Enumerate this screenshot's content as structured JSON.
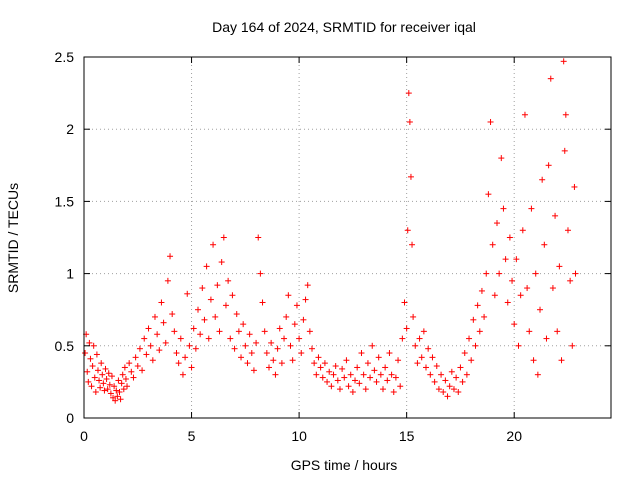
{
  "chart_data": {
    "type": "scatter",
    "title": "Day 164 of 2024, SRMTID for receiver iqal",
    "xlabel": "GPS time / hours",
    "ylabel": "SRMTID / TECUs",
    "xlim": [
      0,
      24.5
    ],
    "ylim": [
      0,
      2.5
    ],
    "xticks": [
      0,
      5,
      10,
      15,
      20
    ],
    "xtick_labels": [
      "0",
      "5",
      "10",
      "15",
      "20"
    ],
    "yticks": [
      0,
      0.5,
      1,
      1.5,
      2,
      2.5
    ],
    "ytick_labels": [
      "0",
      "0.5",
      "1",
      "1.5",
      "2",
      "2.5"
    ],
    "grid": true,
    "marker": "+",
    "color": "#ff0000",
    "series": [
      {
        "name": "SRMTID",
        "points": [
          [
            0.05,
            0.45
          ],
          [
            0.1,
            0.58
          ],
          [
            0.15,
            0.32
          ],
          [
            0.2,
            0.25
          ],
          [
            0.25,
            0.52
          ],
          [
            0.3,
            0.41
          ],
          [
            0.35,
            0.22
          ],
          [
            0.4,
            0.36
          ],
          [
            0.45,
            0.5
          ],
          [
            0.5,
            0.28
          ],
          [
            0.55,
            0.18
          ],
          [
            0.6,
            0.44
          ],
          [
            0.65,
            0.33
          ],
          [
            0.7,
            0.26
          ],
          [
            0.75,
            0.21
          ],
          [
            0.8,
            0.38
          ],
          [
            0.85,
            0.3
          ],
          [
            0.9,
            0.24
          ],
          [
            0.95,
            0.19
          ],
          [
            1.0,
            0.34
          ],
          [
            1.05,
            0.27
          ],
          [
            1.1,
            0.2
          ],
          [
            1.15,
            0.31
          ],
          [
            1.2,
            0.23
          ],
          [
            1.25,
            0.17
          ],
          [
            1.3,
            0.29
          ],
          [
            1.35,
            0.14
          ],
          [
            1.4,
            0.22
          ],
          [
            1.45,
            0.12
          ],
          [
            1.5,
            0.19
          ],
          [
            1.55,
            0.15
          ],
          [
            1.6,
            0.26
          ],
          [
            1.65,
            0.18
          ],
          [
            1.7,
            0.13
          ],
          [
            1.75,
            0.24
          ],
          [
            1.8,
            0.3
          ],
          [
            1.85,
            0.2
          ],
          [
            1.9,
            0.35
          ],
          [
            1.95,
            0.27
          ],
          [
            2.0,
            0.22
          ],
          [
            2.1,
            0.38
          ],
          [
            2.2,
            0.32
          ],
          [
            2.3,
            0.28
          ],
          [
            2.4,
            0.42
          ],
          [
            2.5,
            0.36
          ],
          [
            2.6,
            0.48
          ],
          [
            2.7,
            0.33
          ],
          [
            2.8,
            0.55
          ],
          [
            2.9,
            0.44
          ],
          [
            3.0,
            0.62
          ],
          [
            3.1,
            0.5
          ],
          [
            3.2,
            0.4
          ],
          [
            3.3,
            0.7
          ],
          [
            3.4,
            0.58
          ],
          [
            3.5,
            0.47
          ],
          [
            3.6,
            0.8
          ],
          [
            3.7,
            0.66
          ],
          [
            3.8,
            0.52
          ],
          [
            3.9,
            0.95
          ],
          [
            4.0,
            1.12
          ],
          [
            4.1,
            0.72
          ],
          [
            4.2,
            0.6
          ],
          [
            4.3,
            0.45
          ],
          [
            4.4,
            0.38
          ],
          [
            4.5,
            0.55
          ],
          [
            4.6,
            0.3
          ],
          [
            4.7,
            0.42
          ],
          [
            4.8,
            0.86
          ],
          [
            4.9,
            0.5
          ],
          [
            5.0,
            0.35
          ],
          [
            5.1,
            0.62
          ],
          [
            5.2,
            0.48
          ],
          [
            5.3,
            0.75
          ],
          [
            5.4,
            0.58
          ],
          [
            5.5,
            0.9
          ],
          [
            5.6,
            0.68
          ],
          [
            5.7,
            1.05
          ],
          [
            5.8,
            0.55
          ],
          [
            5.9,
            0.82
          ],
          [
            6.0,
            1.2
          ],
          [
            6.1,
            0.7
          ],
          [
            6.2,
            0.92
          ],
          [
            6.3,
            0.6
          ],
          [
            6.4,
            1.08
          ],
          [
            6.5,
            1.25
          ],
          [
            6.6,
            0.78
          ],
          [
            6.7,
            0.95
          ],
          [
            6.8,
            0.55
          ],
          [
            6.9,
            0.85
          ],
          [
            7.0,
            0.48
          ],
          [
            7.1,
            0.72
          ],
          [
            7.2,
            0.6
          ],
          [
            7.3,
            0.42
          ],
          [
            7.4,
            0.65
          ],
          [
            7.5,
            0.5
          ],
          [
            7.6,
            0.38
          ],
          [
            7.7,
            0.58
          ],
          [
            7.8,
            0.45
          ],
          [
            7.9,
            0.33
          ],
          [
            8.0,
            0.52
          ],
          [
            8.1,
            1.25
          ],
          [
            8.2,
            1.0
          ],
          [
            8.3,
            0.8
          ],
          [
            8.4,
            0.6
          ],
          [
            8.5,
            0.45
          ],
          [
            8.6,
            0.35
          ],
          [
            8.7,
            0.52
          ],
          [
            8.8,
            0.4
          ],
          [
            8.9,
            0.3
          ],
          [
            9.0,
            0.48
          ],
          [
            9.1,
            0.62
          ],
          [
            9.2,
            0.38
          ],
          [
            9.3,
            0.55
          ],
          [
            9.4,
            0.7
          ],
          [
            9.5,
            0.85
          ],
          [
            9.6,
            0.5
          ],
          [
            9.7,
            0.4
          ],
          [
            9.8,
            0.65
          ],
          [
            9.9,
            0.78
          ],
          [
            10.0,
            0.55
          ],
          [
            10.1,
            0.45
          ],
          [
            10.2,
            0.68
          ],
          [
            10.3,
            0.82
          ],
          [
            10.4,
            0.92
          ],
          [
            10.5,
            0.6
          ],
          [
            10.6,
            0.48
          ],
          [
            10.7,
            0.38
          ],
          [
            10.8,
            0.3
          ],
          [
            10.9,
            0.42
          ],
          [
            11.0,
            0.35
          ],
          [
            11.1,
            0.28
          ],
          [
            11.2,
            0.38
          ],
          [
            11.3,
            0.25
          ],
          [
            11.4,
            0.32
          ],
          [
            11.5,
            0.22
          ],
          [
            11.6,
            0.3
          ],
          [
            11.7,
            0.36
          ],
          [
            11.8,
            0.26
          ],
          [
            11.9,
            0.2
          ],
          [
            12.0,
            0.34
          ],
          [
            12.1,
            0.28
          ],
          [
            12.2,
            0.4
          ],
          [
            12.3,
            0.22
          ],
          [
            12.4,
            0.3
          ],
          [
            12.5,
            0.18
          ],
          [
            12.6,
            0.26
          ],
          [
            12.7,
            0.35
          ],
          [
            12.8,
            0.24
          ],
          [
            12.9,
            0.45
          ],
          [
            13.0,
            0.3
          ],
          [
            13.1,
            0.2
          ],
          [
            13.2,
            0.38
          ],
          [
            13.3,
            0.28
          ],
          [
            13.4,
            0.5
          ],
          [
            13.5,
            0.33
          ],
          [
            13.6,
            0.25
          ],
          [
            13.7,
            0.42
          ],
          [
            13.8,
            0.3
          ],
          [
            13.9,
            0.2
          ],
          [
            14.0,
            0.35
          ],
          [
            14.1,
            0.26
          ],
          [
            14.2,
            0.45
          ],
          [
            14.3,
            0.3
          ],
          [
            14.4,
            0.18
          ],
          [
            14.5,
            0.28
          ],
          [
            14.6,
            0.4
          ],
          [
            14.7,
            0.22
          ],
          [
            14.8,
            0.55
          ],
          [
            14.9,
            0.8
          ],
          [
            15.0,
            0.62
          ],
          [
            15.05,
            1.3
          ],
          [
            15.1,
            2.25
          ],
          [
            15.15,
            2.05
          ],
          [
            15.2,
            1.67
          ],
          [
            15.25,
            1.2
          ],
          [
            15.3,
            0.7
          ],
          [
            15.4,
            0.5
          ],
          [
            15.5,
            0.38
          ],
          [
            15.6,
            0.55
          ],
          [
            15.7,
            0.42
          ],
          [
            15.8,
            0.6
          ],
          [
            15.9,
            0.35
          ],
          [
            16.0,
            0.48
          ],
          [
            16.1,
            0.3
          ],
          [
            16.2,
            0.42
          ],
          [
            16.3,
            0.25
          ],
          [
            16.4,
            0.36
          ],
          [
            16.5,
            0.2
          ],
          [
            16.6,
            0.3
          ],
          [
            16.7,
            0.18
          ],
          [
            16.8,
            0.26
          ],
          [
            16.9,
            0.15
          ],
          [
            17.0,
            0.22
          ],
          [
            17.1,
            0.32
          ],
          [
            17.2,
            0.2
          ],
          [
            17.3,
            0.28
          ],
          [
            17.4,
            0.18
          ],
          [
            17.5,
            0.35
          ],
          [
            17.6,
            0.25
          ],
          [
            17.7,
            0.45
          ],
          [
            17.8,
            0.3
          ],
          [
            17.9,
            0.55
          ],
          [
            18.0,
            0.4
          ],
          [
            18.1,
            0.68
          ],
          [
            18.2,
            0.5
          ],
          [
            18.3,
            0.78
          ],
          [
            18.4,
            0.6
          ],
          [
            18.5,
            0.88
          ],
          [
            18.6,
            0.7
          ],
          [
            18.7,
            1.0
          ],
          [
            18.8,
            1.55
          ],
          [
            18.9,
            2.05
          ],
          [
            19.0,
            1.2
          ],
          [
            19.1,
            0.85
          ],
          [
            19.2,
            1.35
          ],
          [
            19.3,
            1.0
          ],
          [
            19.4,
            1.8
          ],
          [
            19.5,
            1.45
          ],
          [
            19.6,
            1.1
          ],
          [
            19.7,
            0.8
          ],
          [
            19.8,
            1.25
          ],
          [
            19.9,
            0.95
          ],
          [
            20.0,
            0.65
          ],
          [
            20.1,
            1.1
          ],
          [
            20.2,
            0.5
          ],
          [
            20.3,
            0.85
          ],
          [
            20.4,
            1.3
          ],
          [
            20.5,
            2.1
          ],
          [
            20.6,
            0.9
          ],
          [
            20.7,
            0.6
          ],
          [
            20.8,
            1.45
          ],
          [
            20.9,
            0.4
          ],
          [
            21.0,
            1.0
          ],
          [
            21.1,
            0.3
          ],
          [
            21.2,
            0.75
          ],
          [
            21.3,
            1.65
          ],
          [
            21.4,
            1.2
          ],
          [
            21.5,
            0.55
          ],
          [
            21.6,
            1.75
          ],
          [
            21.7,
            2.35
          ],
          [
            21.8,
            0.9
          ],
          [
            21.9,
            1.4
          ],
          [
            22.0,
            0.6
          ],
          [
            22.1,
            1.05
          ],
          [
            22.2,
            0.4
          ],
          [
            22.3,
            2.47
          ],
          [
            22.35,
            1.85
          ],
          [
            22.4,
            2.1
          ],
          [
            22.5,
            1.3
          ],
          [
            22.6,
            0.95
          ],
          [
            22.7,
            0.5
          ],
          [
            22.8,
            1.6
          ],
          [
            22.85,
            1.0
          ]
        ]
      }
    ]
  }
}
